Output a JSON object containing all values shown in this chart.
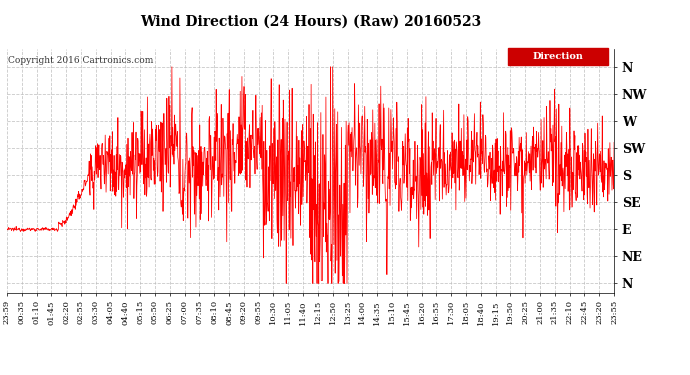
{
  "title": "Wind Direction (24 Hours) (Raw) 20160523",
  "copyright": "Copyright 2016 Cartronics.com",
  "legend_label": "Direction",
  "line_color": "#ff0000",
  "background_color": "#ffffff",
  "plot_bg": "#ffffff",
  "yticks": [
    360,
    315,
    270,
    225,
    180,
    135,
    90,
    45,
    0
  ],
  "ylabels": [
    "N",
    "NW",
    "W",
    "SW",
    "S",
    "SE",
    "E",
    "NE",
    "N"
  ],
  "ylim": [
    -15,
    390
  ],
  "xtick_labels": [
    "23:59",
    "00:35",
    "01:10",
    "01:45",
    "02:20",
    "02:55",
    "03:30",
    "04:05",
    "04:40",
    "05:15",
    "05:50",
    "06:25",
    "07:00",
    "07:35",
    "08:10",
    "08:45",
    "09:20",
    "09:55",
    "10:30",
    "11:05",
    "11:40",
    "12:15",
    "12:50",
    "13:25",
    "14:00",
    "14:35",
    "15:10",
    "15:45",
    "16:20",
    "16:55",
    "17:30",
    "18:05",
    "18:40",
    "19:15",
    "19:50",
    "20:25",
    "21:00",
    "21:35",
    "22:10",
    "22:45",
    "23:20",
    "23:55"
  ],
  "grid_color": "#bbbbbb",
  "grid_linestyle": "--"
}
